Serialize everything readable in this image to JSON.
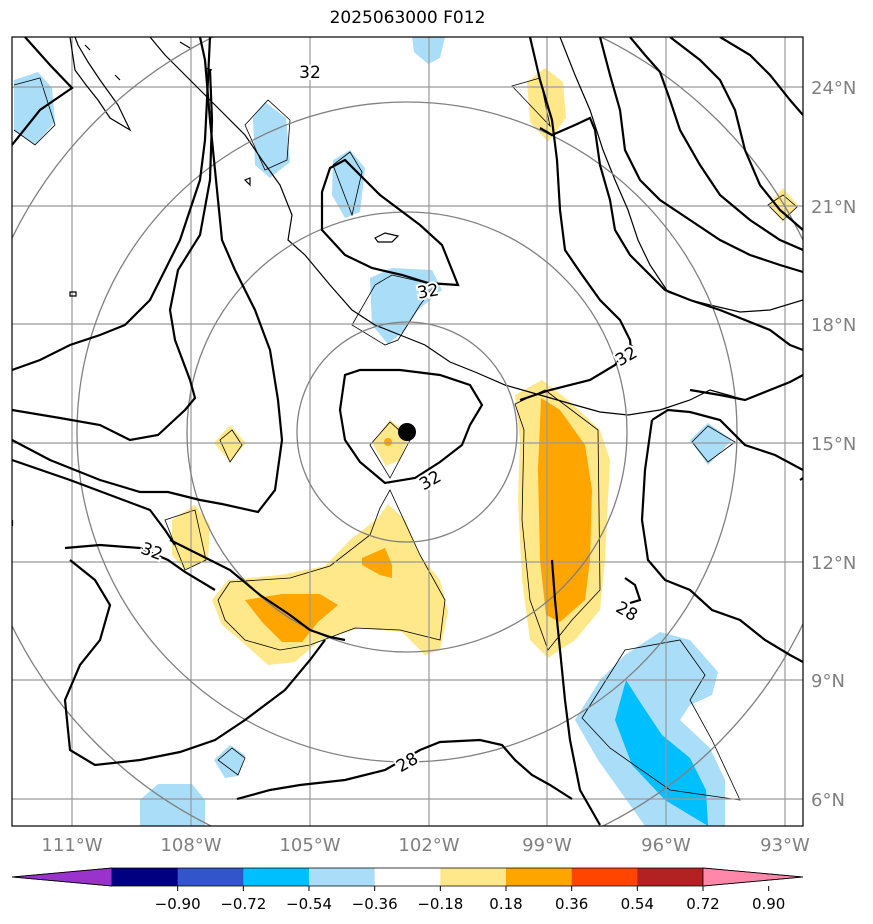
{
  "title": "2025063000 F012",
  "lat_labels": [
    "24°N",
    "21°N",
    "18°N",
    "15°N",
    "12°N",
    "9°N",
    "6°N"
  ],
  "lon_labels": [
    "111°W",
    "108°W",
    "105°W",
    "102°W",
    "99°W",
    "96°W",
    "93°W"
  ],
  "contour_labels": [
    "32",
    "32",
    "32",
    "32",
    "32",
    "28",
    "28"
  ],
  "colorbar": {
    "ticks": [
      "−0.90",
      "−0.72",
      "−0.54",
      "−0.36",
      "−0.18",
      "0.18",
      "0.36",
      "0.54",
      "0.72",
      "0.90"
    ],
    "colors": [
      "#9933cc",
      "#000080",
      "#3355cc",
      "#00bfff",
      "#aaddf7",
      "#ffffff",
      "#ffe88a",
      "#ffa500",
      "#ff4500",
      "#b22222",
      "#ff88aa"
    ]
  },
  "map": {
    "lon_range": [
      -112.5,
      -92.5
    ],
    "lat_range": [
      5.3,
      25.2
    ],
    "storm_center": {
      "lon": -102.55,
      "lat": 15.2
    },
    "gridlines": true
  }
}
